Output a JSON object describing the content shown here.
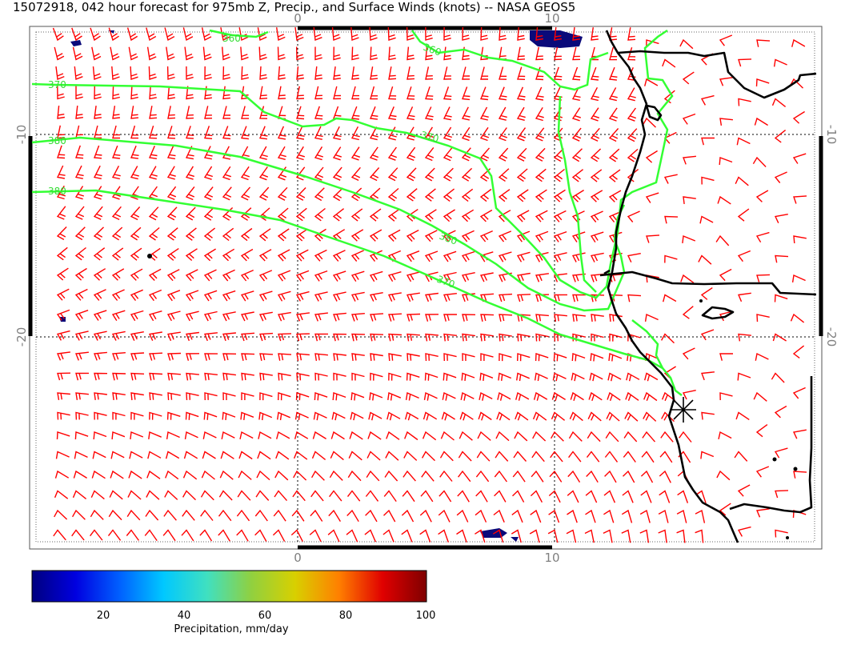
{
  "title": "15072918, 042 hour forecast for 975mb Z, Precip., and Surface Winds (knots) -- NASA GEOS5",
  "axes": {
    "top_ticks": [
      "0",
      "10"
    ],
    "bottom_ticks": [
      "0",
      "10"
    ],
    "left_ticks": [
      "-10",
      "-20"
    ],
    "right_ticks": [
      "-10",
      "-20"
    ]
  },
  "contours": {
    "color": "#33ff33",
    "labels": [
      "360",
      "360",
      "370",
      "370",
      "380",
      "380",
      "380",
      "370"
    ]
  },
  "wind_barbs": {
    "color": "#ff0000",
    "units": "knots"
  },
  "coastline_color": "#000000",
  "colorbar": {
    "label": "Precipitation, mm/day",
    "ticks": [
      "20",
      "40",
      "60",
      "80",
      "100"
    ],
    "colors": [
      "#00007f",
      "#0000e0",
      "#0060ff",
      "#00c8ff",
      "#40e0c0",
      "#90d040",
      "#d8d000",
      "#ff8000",
      "#e00000",
      "#7f0000"
    ]
  }
}
